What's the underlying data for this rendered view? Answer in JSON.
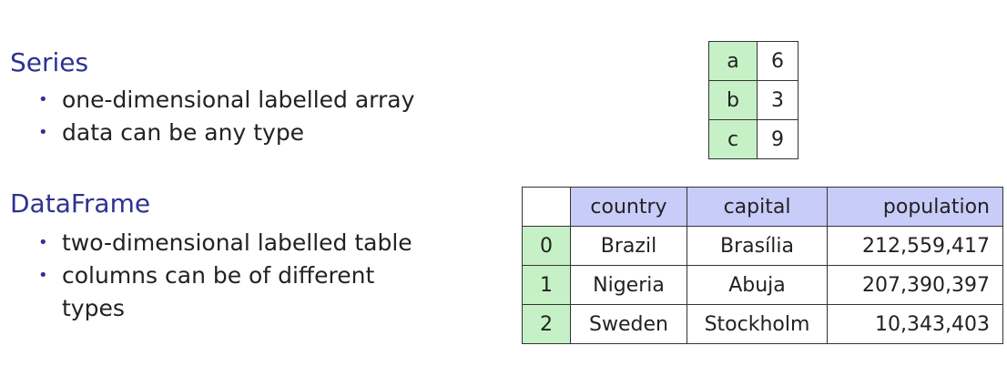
{
  "series_section": {
    "heading": "Series",
    "bullets": [
      "one-dimensional labelled array",
      "data can be any type"
    ]
  },
  "dataframe_section": {
    "heading": "DataFrame",
    "bullets": [
      "two-dimensional labelled table",
      "columns can be of different",
      "types"
    ]
  },
  "series_table": {
    "rows": [
      {
        "index": "a",
        "value": "6"
      },
      {
        "index": "b",
        "value": "3"
      },
      {
        "index": "c",
        "value": "9"
      }
    ]
  },
  "dataframe_table": {
    "columns": [
      "country",
      "capital",
      "population"
    ],
    "rows": [
      {
        "index": "0",
        "country": "Brazil",
        "capital": "Brasília",
        "population": "212,559,417"
      },
      {
        "index": "1",
        "country": "Nigeria",
        "capital": "Abuja",
        "population": "207,390,397"
      },
      {
        "index": "2",
        "country": "Sweden",
        "capital": "Stockholm",
        "population": "10,343,403"
      }
    ]
  },
  "colors": {
    "heading": "#2e3192",
    "index_bg": "#c6f1c6",
    "header_bg": "#c8ccf9"
  }
}
